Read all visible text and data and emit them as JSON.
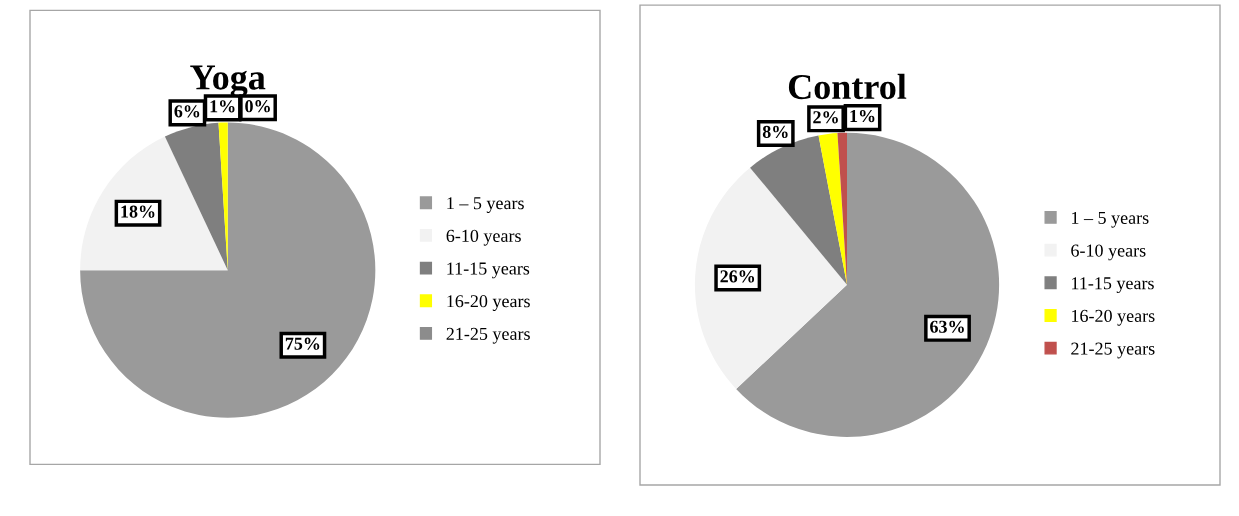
{
  "chart_data": [
    {
      "type": "pie",
      "title": "Yoga",
      "categories": [
        "1 – 5 years",
        "6-10 years",
        "11-15 years",
        "16-20 years",
        "21-25 years"
      ],
      "values": [
        75,
        18,
        6,
        1,
        0
      ],
      "colors": [
        "#9a9a9a",
        "#f2f2f2",
        "#7f7f7f",
        "#ffff00",
        "#8c8c8c"
      ],
      "value_labels": [
        "75%",
        "18%",
        "6%",
        "1%",
        "0%"
      ],
      "legend": "right"
    },
    {
      "type": "pie",
      "title": "Control",
      "categories": [
        "1 – 5 years",
        "6-10 years",
        "11-15 years",
        "16-20 years",
        "21-25 years"
      ],
      "values": [
        63,
        26,
        8,
        2,
        1
      ],
      "colors": [
        "#9a9a9a",
        "#f2f2f2",
        "#7f7f7f",
        "#ffff00",
        "#c0504d"
      ],
      "value_labels": [
        "63%",
        "26%",
        "8%",
        "2%",
        "1%"
      ],
      "legend": "right"
    }
  ]
}
